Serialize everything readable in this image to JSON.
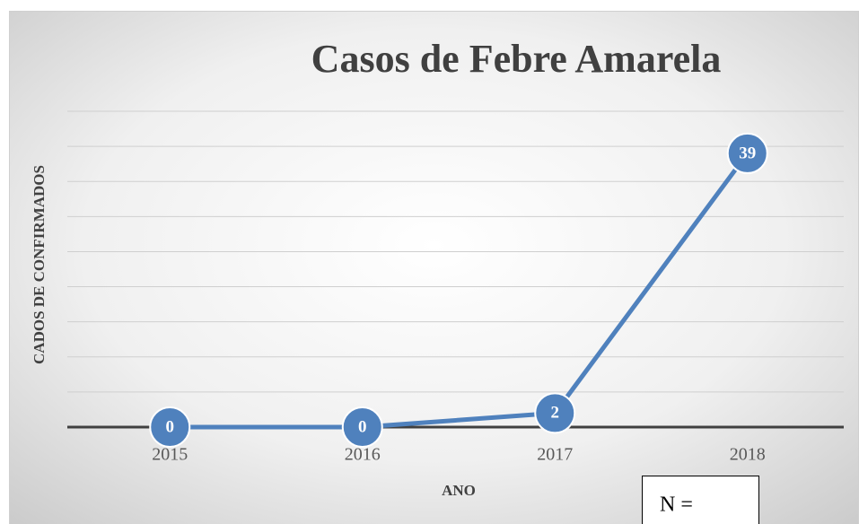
{
  "chart_data": {
    "type": "line",
    "title": "Casos de Febre Amarela",
    "x_label": "ANO",
    "y_label": "CADOS DE CONFIRMADOS",
    "categories": [
      "2015",
      "2016",
      "2017",
      "2018"
    ],
    "series": [
      {
        "name": "Casos",
        "color": "#4f81bd",
        "values": [
          0,
          0,
          2,
          39
        ]
      }
    ],
    "ylim": [
      0,
      45
    ],
    "yticks": [
      0,
      5,
      10,
      15,
      20,
      25,
      30,
      35,
      40,
      45
    ],
    "show_ytick_labels": false,
    "grid": true,
    "data_labels": true,
    "annotation": "N ="
  }
}
